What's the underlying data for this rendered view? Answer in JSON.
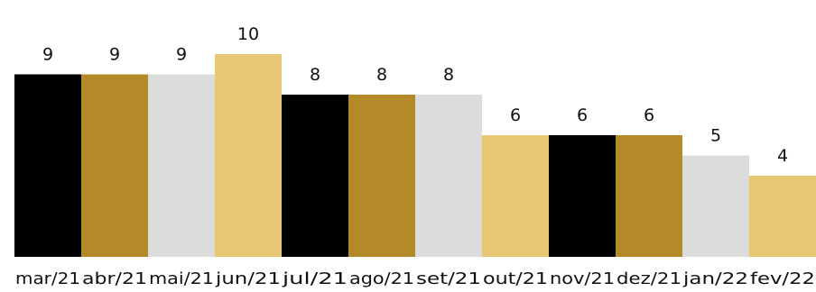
{
  "chart_data": {
    "type": "bar",
    "categories": [
      "mar/21",
      "abr/21",
      "mai/21",
      "jun/21",
      "jul/21",
      "ago/21",
      "set/21",
      "out/21",
      "nov/21",
      "dez/21",
      "jan/22",
      "fev/22"
    ],
    "values": [
      9,
      9,
      9,
      10,
      8,
      8,
      8,
      6,
      6,
      6,
      5,
      4
    ],
    "colors": [
      "#000000",
      "#b48a28",
      "#dcdcdc",
      "#e7c676",
      "#000000",
      "#b48a28",
      "#dcdcdc",
      "#e7c676",
      "#000000",
      "#b48a28",
      "#dcdcdc",
      "#e7c676"
    ],
    "title": "",
    "xlabel": "",
    "ylabel": "",
    "ylim": [
      0,
      10
    ],
    "grid": false,
    "legend": "none",
    "data_labels": true
  }
}
